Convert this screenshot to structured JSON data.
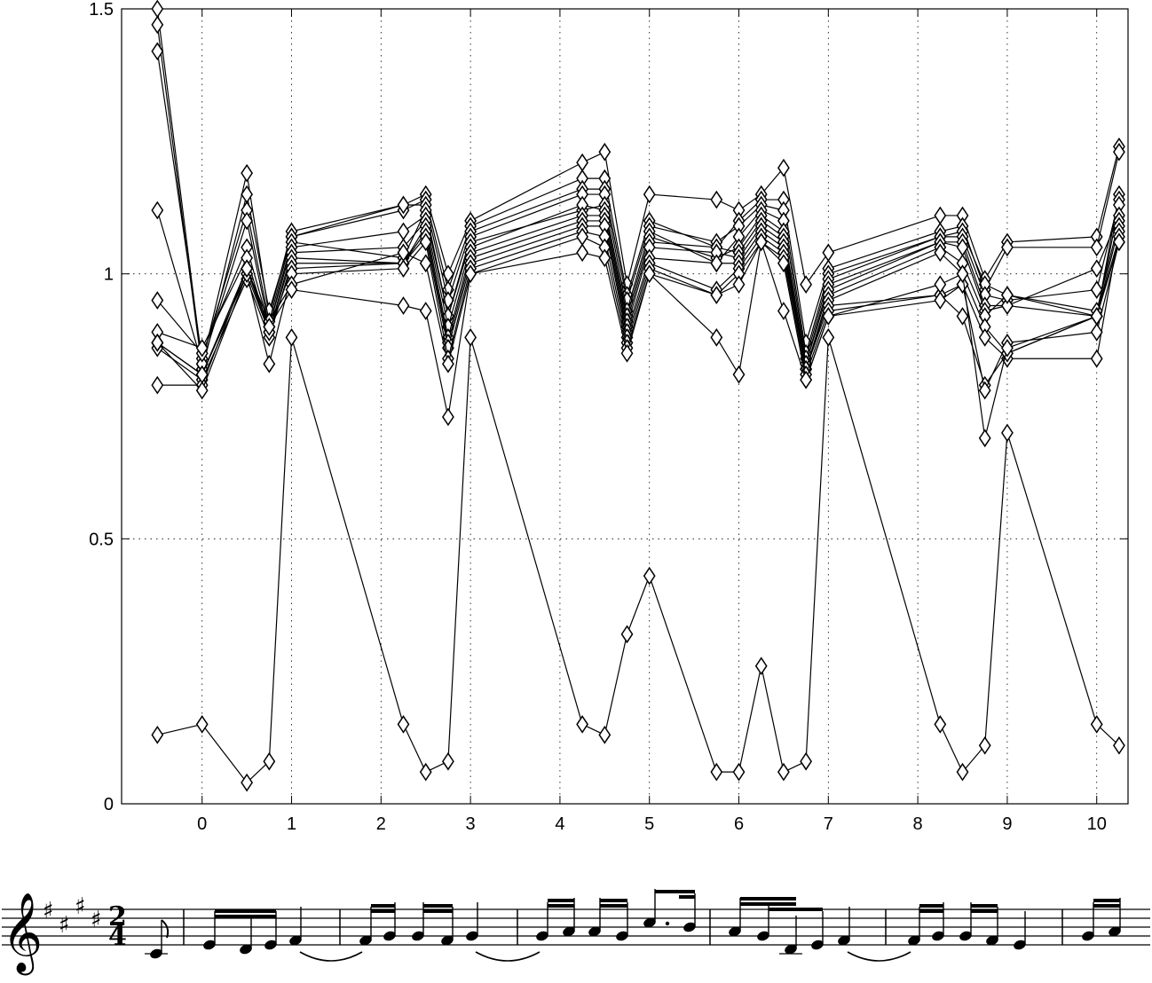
{
  "chart_data": {
    "type": "line",
    "title": "",
    "xlabel": "",
    "ylabel": "",
    "xlim": [
      -0.9,
      10.35
    ],
    "ylim": [
      0,
      1.5
    ],
    "x_ticks": [
      0,
      1,
      2,
      3,
      4,
      5,
      6,
      7,
      8,
      9,
      10
    ],
    "x_tick_labels": [
      "0",
      "1",
      "2",
      "3",
      "4",
      "5",
      "6",
      "7",
      "8",
      "9",
      "10"
    ],
    "y_ticks": [
      0,
      0.5,
      1,
      1.5
    ],
    "y_tick_labels": [
      "0",
      "0.5",
      "1",
      "1.5"
    ],
    "grid": true,
    "marker": "diamond",
    "x": [
      -0.5,
      0,
      0.5,
      0.75,
      1,
      2.25,
      2.5,
      2.75,
      3,
      4.25,
      4.5,
      4.75,
      5,
      5.75,
      6,
      6.25,
      6.5,
      6.75,
      7,
      8.25,
      8.5,
      8.75,
      9,
      10,
      10.25
    ],
    "series": [
      {
        "values": [
          1.5,
          0.83,
          1.19,
          0.92,
          1.08,
          1.13,
          1.15,
          1.0,
          1.1,
          1.21,
          1.23,
          0.98,
          1.15,
          1.14,
          1.12,
          1.15,
          1.2,
          0.98,
          1.04,
          1.11,
          1.11,
          0.99,
          1.06,
          1.07,
          1.24
        ]
      },
      {
        "values": [
          1.47,
          0.82,
          1.15,
          0.93,
          1.07,
          1.12,
          1.14,
          0.97,
          1.09,
          1.18,
          1.18,
          0.96,
          1.1,
          1.05,
          1.1,
          1.14,
          1.14,
          0.87,
          1.01,
          1.08,
          1.09,
          0.97,
          1.05,
          1.05,
          1.23
        ]
      },
      {
        "values": [
          1.42,
          0.84,
          1.12,
          0.91,
          1.07,
          1.13,
          1.13,
          0.95,
          1.08,
          1.16,
          1.16,
          0.95,
          1.09,
          1.06,
          1.09,
          1.13,
          1.12,
          0.85,
          1.0,
          1.07,
          1.08,
          0.98,
          0.96,
          0.92,
          1.15
        ]
      },
      {
        "values": [
          1.12,
          0.83,
          1.1,
          0.9,
          1.06,
          1.03,
          1.12,
          0.92,
          1.07,
          1.15,
          1.15,
          0.93,
          1.08,
          1.02,
          1.07,
          1.12,
          1.1,
          0.84,
          0.99,
          1.07,
          1.07,
          0.96,
          0.95,
          0.97,
          1.14
        ]
      },
      {
        "values": [
          0.95,
          0.85,
          1.05,
          0.9,
          1.05,
          1.08,
          1.11,
          0.92,
          1.06,
          1.12,
          1.13,
          0.92,
          1.07,
          1.03,
          1.05,
          1.11,
          1.08,
          0.83,
          0.98,
          1.06,
          1.06,
          0.94,
          0.94,
          0.92,
          1.13
        ]
      },
      {
        "values": [
          0.89,
          0.86,
          1.03,
          0.89,
          1.04,
          1.05,
          1.1,
          0.9,
          1.05,
          1.13,
          1.12,
          0.91,
          1.06,
          1.05,
          1.04,
          1.1,
          1.07,
          0.83,
          0.97,
          1.06,
          1.05,
          0.93,
          0.94,
          1.01,
          1.11
        ]
      },
      {
        "values": [
          0.87,
          0.81,
          1.0,
          0.89,
          1.03,
          1.02,
          1.09,
          0.88,
          1.04,
          1.11,
          1.11,
          0.9,
          1.05,
          1.04,
          1.03,
          1.09,
          1.06,
          0.82,
          0.96,
          1.05,
          1.02,
          0.92,
          0.96,
          0.93,
          1.1
        ]
      },
      {
        "values": [
          0.86,
          0.8,
          0.99,
          0.88,
          1.02,
          1.02,
          1.08,
          0.87,
          1.03,
          1.1,
          1.1,
          0.89,
          1.03,
          1.02,
          1.02,
          1.08,
          1.05,
          0.82,
          0.95,
          1.04,
          1.0,
          0.9,
          0.85,
          0.92,
          1.09
        ]
      },
      {
        "values": [
          0.79,
          0.79,
          1.01,
          0.89,
          1.01,
          1.02,
          1.07,
          0.86,
          1.02,
          1.09,
          1.09,
          0.88,
          1.02,
          0.97,
          1.01,
          1.07,
          1.04,
          0.82,
          0.94,
          0.96,
          0.98,
          0.88,
          0.84,
          0.84,
          1.08
        ]
      },
      {
        "values": [
          0.87,
          0.78,
          1.0,
          0.83,
          1.0,
          1.01,
          1.06,
          0.84,
          1.01,
          1.08,
          1.07,
          0.87,
          1.01,
          0.96,
          1.0,
          1.06,
          1.03,
          0.81,
          0.93,
          0.96,
          0.92,
          0.79,
          0.85,
          0.92,
          1.07
        ]
      },
      {
        "values": [
          0.87,
          0.81,
          1.01,
          0.91,
          0.98,
          1.04,
          1.02,
          0.83,
          1.0,
          1.07,
          1.05,
          0.86,
          1.0,
          0.96,
          0.98,
          1.06,
          1.02,
          0.8,
          0.92,
          0.95,
          0.98,
          0.78,
          0.87,
          0.89,
          1.06
        ]
      },
      {
        "values": [
          0.87,
          0.81,
          1.01,
          0.9,
          0.97,
          0.94,
          0.93,
          0.73,
          1.0,
          1.04,
          1.03,
          0.85,
          1.0,
          0.88,
          0.81,
          1.06,
          0.93,
          0.8,
          0.92,
          0.98,
          1.0,
          0.69,
          0.86,
          0.92,
          1.06
        ]
      },
      {
        "values": [
          0.13,
          0.15,
          0.04,
          0.08,
          0.88,
          0.15,
          0.06,
          0.08,
          0.88,
          0.15,
          0.13,
          0.32,
          0.43,
          0.06,
          0.06,
          0.26,
          0.06,
          0.08,
          0.88,
          0.15,
          0.06,
          0.11,
          0.7,
          0.15,
          0.11
        ]
      }
    ]
  },
  "score": {
    "clef": "treble",
    "key_signature": "E major (4 sharps)",
    "time_signature_top": "2",
    "time_signature_bottom": "4"
  }
}
